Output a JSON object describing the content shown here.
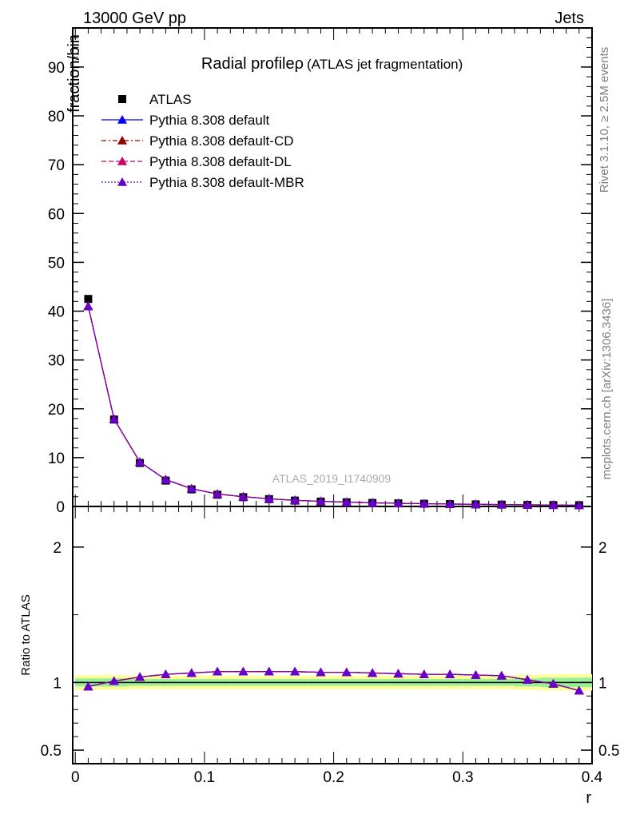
{
  "header": {
    "left": "13000 GeV pp",
    "right": "Jets"
  },
  "side_text": {
    "rivet": "Rivet 3.1.10, ≥ 2.5M events",
    "source": "mcplots.cern.ch [arXiv:1306.3436]"
  },
  "watermark": "ATLAS_2019_I1740909",
  "chart_data": [
    {
      "type": "line",
      "title": "Radial profileρ",
      "subtitle": "(ATLAS jet fragmentation)",
      "ylabel": "fraction/bin",
      "xlim": [
        -0.002,
        0.4
      ],
      "ylim": [
        0,
        98
      ],
      "yticks": [
        10,
        20,
        30,
        40,
        50,
        60,
        70,
        80,
        90
      ],
      "x": [
        0.01,
        0.03,
        0.05,
        0.07,
        0.09,
        0.11,
        0.13,
        0.15,
        0.17,
        0.19,
        0.21,
        0.23,
        0.25,
        0.27,
        0.29,
        0.31,
        0.33,
        0.35,
        0.37,
        0.39
      ],
      "series": [
        {
          "name": "ATLAS",
          "marker": "square",
          "color": "#000000",
          "line": "none",
          "values": [
            42.5,
            17.8,
            8.9,
            5.3,
            3.5,
            2.4,
            1.9,
            1.5,
            1.2,
            1.0,
            0.85,
            0.72,
            0.63,
            0.55,
            0.48,
            0.42,
            0.37,
            0.33,
            0.29,
            0.26
          ]
        },
        {
          "name": "Pythia 8.308 default",
          "marker": "triangle",
          "color": "#0000ff",
          "line": "solid",
          "values": [
            41.0,
            17.9,
            9.1,
            5.5,
            3.65,
            2.55,
            2.0,
            1.57,
            1.26,
            1.05,
            0.89,
            0.75,
            0.66,
            0.57,
            0.5,
            0.44,
            0.38,
            0.335,
            0.29,
            0.25
          ]
        },
        {
          "name": "Pythia 8.308 default-CD",
          "marker": "triangle",
          "color": "#990000",
          "line": "dashdot",
          "values": [
            41.0,
            17.9,
            9.1,
            5.5,
            3.65,
            2.55,
            2.0,
            1.57,
            1.26,
            1.05,
            0.89,
            0.75,
            0.66,
            0.57,
            0.5,
            0.44,
            0.38,
            0.335,
            0.29,
            0.25
          ]
        },
        {
          "name": "Pythia 8.308 default-DL",
          "marker": "triangle",
          "color": "#cc0066",
          "line": "dashed",
          "values": [
            41.0,
            17.9,
            9.1,
            5.5,
            3.65,
            2.55,
            2.0,
            1.57,
            1.26,
            1.05,
            0.89,
            0.75,
            0.66,
            0.57,
            0.5,
            0.44,
            0.38,
            0.335,
            0.29,
            0.25
          ]
        },
        {
          "name": "Pythia 8.308 default-MBR",
          "marker": "triangle",
          "color": "#6600cc",
          "line": "dotted",
          "values": [
            41.0,
            17.9,
            9.1,
            5.5,
            3.65,
            2.55,
            2.0,
            1.57,
            1.26,
            1.05,
            0.89,
            0.75,
            0.66,
            0.57,
            0.5,
            0.44,
            0.38,
            0.335,
            0.29,
            0.25
          ]
        }
      ]
    },
    {
      "type": "line",
      "ylabel": "Ratio to ATLAS",
      "xlabel": "r",
      "xlim": [
        -0.002,
        0.4
      ],
      "ylim": [
        0.4,
        2.3
      ],
      "yticks": [
        0.5,
        1,
        2
      ],
      "ytick_labels": [
        "0.5",
        "1",
        "2"
      ],
      "xticks": [
        0,
        0.1,
        0.2,
        0.3,
        0.4
      ],
      "xtick_labels": [
        "0",
        "0.1",
        "0.2",
        "0.3",
        "0.4"
      ],
      "x": [
        0.01,
        0.03,
        0.05,
        0.07,
        0.09,
        0.11,
        0.13,
        0.15,
        0.17,
        0.19,
        0.21,
        0.23,
        0.25,
        0.27,
        0.29,
        0.31,
        0.33,
        0.35,
        0.37,
        0.39
      ],
      "reference": 1,
      "band_outer": [
        0.055,
        0.055,
        0.05,
        0.05,
        0.05,
        0.05,
        0.05,
        0.05,
        0.05,
        0.05,
        0.05,
        0.05,
        0.05,
        0.05,
        0.05,
        0.05,
        0.05,
        0.055,
        0.06,
        0.06
      ],
      "band_inner": [
        0.03,
        0.03,
        0.025,
        0.025,
        0.025,
        0.025,
        0.025,
        0.025,
        0.025,
        0.025,
        0.025,
        0.025,
        0.025,
        0.025,
        0.025,
        0.025,
        0.025,
        0.03,
        0.035,
        0.035
      ],
      "band_colors": {
        "outer": "#ffff99",
        "inner": "#99ee99"
      },
      "series": [
        {
          "name": "Pythia 8.308 default",
          "color": "#0000ff",
          "line": "solid",
          "values": [
            0.97,
            1.01,
            1.04,
            1.06,
            1.07,
            1.08,
            1.08,
            1.08,
            1.08,
            1.075,
            1.075,
            1.07,
            1.065,
            1.06,
            1.06,
            1.055,
            1.05,
            1.02,
            0.99,
            0.94
          ]
        },
        {
          "name": "Pythia 8.308 default-CD",
          "color": "#990000",
          "line": "dashdot",
          "values": [
            0.97,
            1.01,
            1.04,
            1.06,
            1.07,
            1.08,
            1.08,
            1.08,
            1.08,
            1.075,
            1.075,
            1.07,
            1.065,
            1.06,
            1.06,
            1.055,
            1.05,
            1.02,
            0.99,
            0.94
          ]
        },
        {
          "name": "Pythia 8.308 default-DL",
          "color": "#cc0066",
          "line": "dashed",
          "values": [
            0.97,
            1.01,
            1.04,
            1.06,
            1.07,
            1.08,
            1.08,
            1.08,
            1.08,
            1.075,
            1.075,
            1.07,
            1.065,
            1.06,
            1.06,
            1.055,
            1.05,
            1.02,
            0.99,
            0.94
          ]
        },
        {
          "name": "Pythia 8.308 default-MBR",
          "color": "#6600cc",
          "line": "dotted",
          "values": [
            0.97,
            1.01,
            1.04,
            1.06,
            1.07,
            1.08,
            1.08,
            1.08,
            1.08,
            1.075,
            1.075,
            1.07,
            1.065,
            1.06,
            1.06,
            1.055,
            1.05,
            1.02,
            0.99,
            0.94
          ]
        }
      ]
    }
  ]
}
